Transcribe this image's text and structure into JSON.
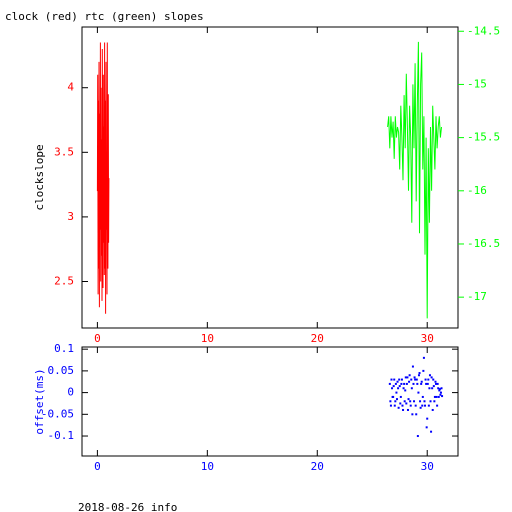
{
  "chart_data": [
    {
      "type": "line",
      "title": "clock (red) rtc (green) slopes",
      "ylabel": "clockslope",
      "xlim": [
        -1.4,
        32.8
      ],
      "xticks": [
        0,
        10,
        20,
        30
      ],
      "ylim": [
        2.14,
        4.47
      ],
      "yticks": [
        2.5,
        3,
        3.5,
        4
      ],
      "y2lim": [
        -17.29,
        -14.46
      ],
      "y2ticks": [
        -14.5,
        -15,
        -15.5,
        -16,
        -16.5,
        -17
      ],
      "series": [
        {
          "color": "#ff0000",
          "x": [
            0,
            0.03,
            0.06,
            0.09,
            0.12,
            0.15,
            0.18,
            0.21,
            0.24,
            0.27,
            0.3,
            0.33,
            0.36,
            0.39,
            0.42,
            0.45,
            0.48,
            0.51,
            0.54,
            0.57,
            0.6,
            0.63,
            0.66,
            0.69,
            0.72,
            0.75,
            0.78,
            0.81,
            0.84,
            0.87,
            0.9,
            0.93,
            0.96,
            0.99,
            1.02,
            1.05
          ],
          "values": [
            3.2,
            4.1,
            2.4,
            3.9,
            2.6,
            4.2,
            2.3,
            3.8,
            2.9,
            4.35,
            2.5,
            4.0,
            2.7,
            3.6,
            2.35,
            4.3,
            3.0,
            2.45,
            4.1,
            2.8,
            3.7,
            2.55,
            4.35,
            2.6,
            3.9,
            2.25,
            4.2,
            2.9,
            3.5,
            2.4,
            4.35,
            3.1,
            2.6,
            3.95,
            2.8,
            3.3
          ]
        },
        {
          "color": "#00ff00",
          "axis": "y2",
          "x": [
            26.4,
            26.5,
            26.6,
            26.7,
            26.8,
            26.9,
            27.0,
            27.1,
            27.2,
            27.3,
            27.4,
            27.5,
            27.6,
            27.7,
            27.8,
            27.9,
            28.0,
            28.1,
            28.2,
            28.3,
            28.4,
            28.5,
            28.6,
            28.7,
            28.8,
            28.9,
            29.0,
            29.1,
            29.2,
            29.3,
            29.4,
            29.5,
            29.6,
            29.7,
            29.8,
            29.9,
            30.0,
            30.1,
            30.2,
            30.3,
            30.4,
            30.5,
            30.6,
            30.7,
            30.8,
            30.9,
            31.0,
            31.1,
            31.2,
            31.3
          ],
          "values": [
            -15.4,
            -15.3,
            -15.6,
            -15.3,
            -15.5,
            -15.35,
            -15.7,
            -15.3,
            -15.5,
            -15.4,
            -15.45,
            -15.8,
            -15.2,
            -15.5,
            -15.9,
            -15.1,
            -15.6,
            -14.9,
            -15.4,
            -16.0,
            -15.2,
            -15.5,
            -16.3,
            -15.0,
            -15.6,
            -14.8,
            -16.1,
            -15.2,
            -14.6,
            -16.4,
            -15.0,
            -14.7,
            -15.8,
            -15.3,
            -16.6,
            -15.5,
            -17.2,
            -15.6,
            -16.3,
            -15.4,
            -16.0,
            -15.2,
            -15.5,
            -15.8,
            -15.3,
            -15.6,
            -15.4,
            -15.3,
            -15.5,
            -15.4
          ]
        }
      ]
    },
    {
      "type": "scatter",
      "ylabel": "offset(ms)",
      "color": "#0000ff",
      "xlim": [
        -1.4,
        32.8
      ],
      "xticks": [
        0,
        10,
        20,
        30
      ],
      "ylim": [
        -0.146,
        0.105
      ],
      "yticks": [
        0.1,
        0.05,
        0,
        -0.05,
        -0.1
      ],
      "x": [
        26.6,
        26.7,
        26.8,
        26.9,
        27.0,
        27.1,
        27.2,
        27.3,
        27.4,
        27.5,
        27.6,
        27.7,
        27.8,
        27.9,
        28.0,
        28.1,
        28.2,
        28.3,
        28.4,
        28.5,
        28.6,
        28.7,
        28.8,
        28.9,
        29.0,
        29.1,
        29.2,
        29.3,
        29.4,
        29.5,
        29.6,
        29.7,
        29.8,
        29.9,
        30.0,
        30.1,
        30.2,
        30.3,
        30.4,
        30.5,
        30.6,
        30.7,
        30.8,
        30.9,
        31.0,
        31.1,
        31.2,
        31.3,
        26.65,
        26.75,
        26.85,
        26.95,
        27.05,
        27.15,
        27.25,
        27.35,
        27.45,
        27.55,
        27.65,
        27.75,
        27.85,
        27.95,
        28.05,
        28.15,
        28.25,
        28.35,
        28.45,
        28.55,
        28.65,
        28.75,
        28.85,
        28.95,
        29.05,
        29.15,
        29.25,
        29.35,
        29.45,
        29.55,
        29.65,
        29.75,
        29.85,
        29.95,
        30.05,
        30.15,
        30.25,
        30.35,
        30.45,
        30.55,
        30.65,
        30.75,
        30.85,
        30.95,
        31.05,
        31.15,
        31.25,
        31.35
      ],
      "values": [
        0.02,
        -0.03,
        0.01,
        -0.01,
        0.03,
        -0.02,
        0.0,
        0.025,
        -0.035,
        0.015,
        -0.01,
        0.03,
        -0.04,
        0.02,
        0.005,
        -0.025,
        0.035,
        -0.015,
        0.04,
        -0.03,
        0.01,
        0.06,
        -0.02,
        0.03,
        -0.05,
        0.02,
        0.0,
        0.045,
        -0.035,
        0.025,
        -0.01,
        0.08,
        -0.03,
        0.02,
        -0.06,
        0.03,
        0.01,
        -0.02,
        0.035,
        -0.04,
        0.015,
        -0.01,
        0.02,
        -0.03,
        0.01,
        0.005,
        -0.005,
        0.01,
        -0.02,
        0.03,
        -0.01,
        0.015,
        -0.03,
        0.02,
        -0.015,
        0.01,
        0.03,
        -0.025,
        0.02,
        -0.03,
        0.01,
        -0.02,
        0.035,
        0.02,
        -0.04,
        0.025,
        -0.02,
        0.03,
        -0.05,
        0.02,
        0.035,
        -0.03,
        0.03,
        -0.1,
        0.04,
        -0.02,
        0.02,
        -0.03,
        0.05,
        -0.02,
        0.03,
        -0.08,
        0.02,
        -0.03,
        0.04,
        -0.09,
        0.01,
        0.03,
        -0.02,
        0.025,
        -0.01,
        0.02,
        -0.01,
        0.008,
        0.0,
        -0.008
      ]
    }
  ],
  "footer": "2018-08-26 info"
}
